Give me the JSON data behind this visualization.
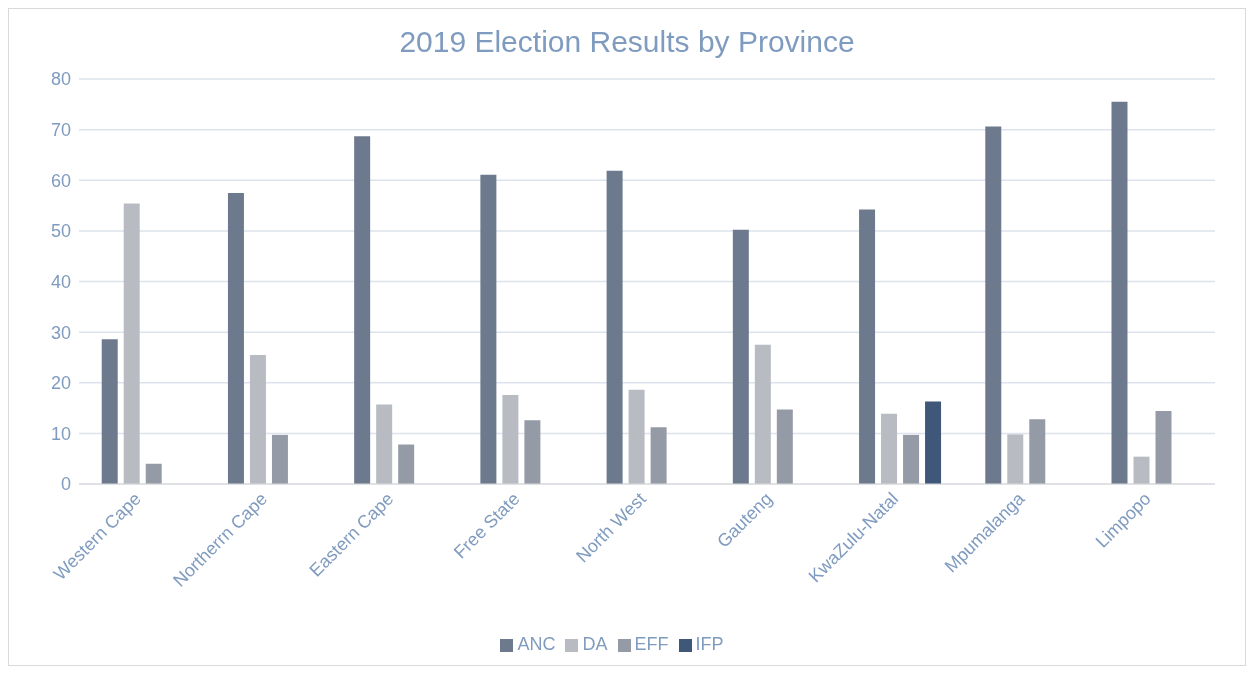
{
  "chart_data": {
    "type": "bar",
    "title": "2019 Election Results by Province",
    "categories": [
      "Western Cape",
      "Northerrn Cape",
      "Eastern Cape",
      "Free State",
      "North West",
      "Gauteng",
      "KwaZulu-Natal",
      "Mpumalanga",
      "Limpopo"
    ],
    "series": [
      {
        "name": "ANC",
        "color": "#6d7a8e",
        "values": [
          28.6,
          57.5,
          68.7,
          61.1,
          61.9,
          50.2,
          54.2,
          70.6,
          75.5
        ]
      },
      {
        "name": "DA",
        "color": "#b8bcc2",
        "values": [
          55.4,
          25.5,
          15.7,
          17.6,
          18.6,
          27.5,
          13.9,
          9.8,
          5.4
        ]
      },
      {
        "name": "EFF",
        "color": "#959ba6",
        "values": [
          4.0,
          9.7,
          7.8,
          12.6,
          11.2,
          14.7,
          9.7,
          12.8,
          14.4
        ]
      },
      {
        "name": "IFP",
        "color": "#3f5778",
        "values": [
          null,
          null,
          null,
          null,
          null,
          null,
          16.3,
          null,
          null
        ]
      }
    ],
    "ylim": [
      0,
      80
    ],
    "yticks": [
      0,
      10,
      20,
      30,
      40,
      50,
      60,
      70,
      80
    ],
    "grid": "y",
    "legend": "bottom"
  }
}
